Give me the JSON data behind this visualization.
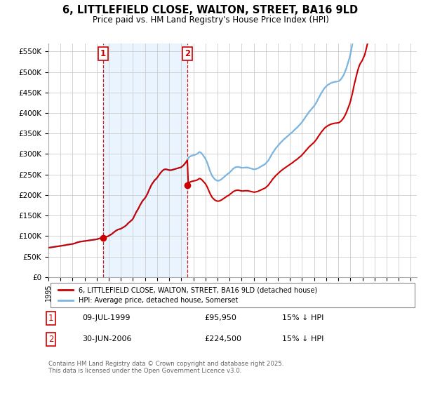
{
  "title": "6, LITTLEFIELD CLOSE, WALTON, STREET, BA16 9LD",
  "subtitle": "Price paid vs. HM Land Registry's House Price Index (HPI)",
  "ylim": [
    0,
    570000
  ],
  "yticks": [
    0,
    50000,
    100000,
    150000,
    200000,
    250000,
    300000,
    350000,
    400000,
    450000,
    500000,
    550000
  ],
  "ytick_labels": [
    "£0",
    "£50K",
    "£100K",
    "£150K",
    "£200K",
    "£250K",
    "£300K",
    "£350K",
    "£400K",
    "£450K",
    "£500K",
    "£550K"
  ],
  "hpi_color": "#7EB6E0",
  "price_color": "#cc0000",
  "vline_color": "#cc0000",
  "fill_color": "#ddeeff",
  "grid_color": "#cccccc",
  "legend_label_price": "6, LITTLEFIELD CLOSE, WALTON, STREET, BA16 9LD (detached house)",
  "legend_label_hpi": "HPI: Average price, detached house, Somerset",
  "sale1_date": "09-JUL-1999",
  "sale1_price": "£95,950",
  "sale1_note": "15% ↓ HPI",
  "sale2_date": "30-JUN-2006",
  "sale2_price": "£224,500",
  "sale2_note": "15% ↓ HPI",
  "footer": "Contains HM Land Registry data © Crown copyright and database right 2025.\nThis data is licensed under the Open Government Licence v3.0.",
  "background_color": "#ffffff",
  "sale1_year": 1999.53,
  "sale1_value": 95950,
  "sale2_year": 2006.5,
  "sale2_value": 224500,
  "hpi_years": [
    1995.0,
    1995.08,
    1995.17,
    1995.25,
    1995.33,
    1995.42,
    1995.5,
    1995.58,
    1995.67,
    1995.75,
    1995.83,
    1995.92,
    1996.0,
    1996.08,
    1996.17,
    1996.25,
    1996.33,
    1996.42,
    1996.5,
    1996.58,
    1996.67,
    1996.75,
    1996.83,
    1996.92,
    1997.0,
    1997.08,
    1997.17,
    1997.25,
    1997.33,
    1997.42,
    1997.5,
    1997.58,
    1997.67,
    1997.75,
    1997.83,
    1997.92,
    1998.0,
    1998.08,
    1998.17,
    1998.25,
    1998.33,
    1998.42,
    1998.5,
    1998.58,
    1998.67,
    1998.75,
    1998.83,
    1998.92,
    1999.0,
    1999.08,
    1999.17,
    1999.25,
    1999.33,
    1999.42,
    1999.5,
    1999.58,
    1999.67,
    1999.75,
    1999.83,
    1999.92,
    2000.0,
    2000.08,
    2000.17,
    2000.25,
    2000.33,
    2000.42,
    2000.5,
    2000.58,
    2000.67,
    2000.75,
    2000.83,
    2000.92,
    2001.0,
    2001.08,
    2001.17,
    2001.25,
    2001.33,
    2001.42,
    2001.5,
    2001.58,
    2001.67,
    2001.75,
    2001.83,
    2001.92,
    2002.0,
    2002.08,
    2002.17,
    2002.25,
    2002.33,
    2002.42,
    2002.5,
    2002.58,
    2002.67,
    2002.75,
    2002.83,
    2002.92,
    2003.0,
    2003.08,
    2003.17,
    2003.25,
    2003.33,
    2003.42,
    2003.5,
    2003.58,
    2003.67,
    2003.75,
    2003.83,
    2003.92,
    2004.0,
    2004.08,
    2004.17,
    2004.25,
    2004.33,
    2004.42,
    2004.5,
    2004.58,
    2004.67,
    2004.75,
    2004.83,
    2004.92,
    2005.0,
    2005.08,
    2005.17,
    2005.25,
    2005.33,
    2005.42,
    2005.5,
    2005.58,
    2005.67,
    2005.75,
    2005.83,
    2005.92,
    2006.0,
    2006.08,
    2006.17,
    2006.25,
    2006.33,
    2006.42,
    2006.5,
    2006.58,
    2006.67,
    2006.75,
    2006.83,
    2006.92,
    2007.0,
    2007.08,
    2007.17,
    2007.25,
    2007.33,
    2007.42,
    2007.5,
    2007.58,
    2007.67,
    2007.75,
    2007.83,
    2007.92,
    2008.0,
    2008.08,
    2008.17,
    2008.25,
    2008.33,
    2008.42,
    2008.5,
    2008.58,
    2008.67,
    2008.75,
    2008.83,
    2008.92,
    2009.0,
    2009.08,
    2009.17,
    2009.25,
    2009.33,
    2009.42,
    2009.5,
    2009.58,
    2009.67,
    2009.75,
    2009.83,
    2009.92,
    2010.0,
    2010.08,
    2010.17,
    2010.25,
    2010.33,
    2010.42,
    2010.5,
    2010.58,
    2010.67,
    2010.75,
    2010.83,
    2010.92,
    2011.0,
    2011.08,
    2011.17,
    2011.25,
    2011.33,
    2011.42,
    2011.5,
    2011.58,
    2011.67,
    2011.75,
    2011.83,
    2011.92,
    2012.0,
    2012.08,
    2012.17,
    2012.25,
    2012.33,
    2012.42,
    2012.5,
    2012.58,
    2012.67,
    2012.75,
    2012.83,
    2012.92,
    2013.0,
    2013.08,
    2013.17,
    2013.25,
    2013.33,
    2013.42,
    2013.5,
    2013.58,
    2013.67,
    2013.75,
    2013.83,
    2013.92,
    2014.0,
    2014.08,
    2014.17,
    2014.25,
    2014.33,
    2014.42,
    2014.5,
    2014.58,
    2014.67,
    2014.75,
    2014.83,
    2014.92,
    2015.0,
    2015.08,
    2015.17,
    2015.25,
    2015.33,
    2015.42,
    2015.5,
    2015.58,
    2015.67,
    2015.75,
    2015.83,
    2015.92,
    2016.0,
    2016.08,
    2016.17,
    2016.25,
    2016.33,
    2016.42,
    2016.5,
    2016.58,
    2016.67,
    2016.75,
    2016.83,
    2016.92,
    2017.0,
    2017.08,
    2017.17,
    2017.25,
    2017.33,
    2017.42,
    2017.5,
    2017.58,
    2017.67,
    2017.75,
    2017.83,
    2017.92,
    2018.0,
    2018.08,
    2018.17,
    2018.25,
    2018.33,
    2018.42,
    2018.5,
    2018.58,
    2018.67,
    2018.75,
    2018.83,
    2018.92,
    2019.0,
    2019.08,
    2019.17,
    2019.25,
    2019.33,
    2019.42,
    2019.5,
    2019.58,
    2019.67,
    2019.75,
    2019.83,
    2019.92,
    2020.0,
    2020.08,
    2020.17,
    2020.25,
    2020.33,
    2020.42,
    2020.5,
    2020.58,
    2020.67,
    2020.75,
    2020.83,
    2020.92,
    2021.0,
    2021.08,
    2021.17,
    2021.25,
    2021.33,
    2021.42,
    2021.5,
    2021.58,
    2021.67,
    2021.75,
    2021.83,
    2021.92,
    2022.0,
    2022.08,
    2022.17,
    2022.25,
    2022.33,
    2022.42,
    2022.5,
    2022.58,
    2022.67,
    2022.75,
    2022.83,
    2022.92,
    2023.0,
    2023.08,
    2023.17,
    2023.25,
    2023.33,
    2023.42,
    2023.5,
    2023.58,
    2023.67,
    2023.75,
    2023.83,
    2023.92,
    2024.0,
    2024.08,
    2024.17,
    2024.25,
    2024.33,
    2024.42,
    2024.5,
    2024.58,
    2024.67,
    2024.75,
    2024.83,
    2024.92,
    2025.0
  ],
  "hpi_index": [
    100,
    100.5,
    101,
    101.5,
    102,
    102.5,
    103,
    103.5,
    104,
    104.5,
    105,
    105.5,
    106,
    106.5,
    107.5,
    108,
    108.5,
    109,
    110,
    110.5,
    111,
    111.5,
    112,
    112.5,
    113,
    114,
    115,
    116,
    117.5,
    118.5,
    119.5,
    120.5,
    121,
    121.5,
    122,
    122.5,
    123,
    123.5,
    124,
    124.5,
    125,
    125.5,
    126,
    126.5,
    127,
    127.5,
    128,
    128.5,
    129,
    130,
    131,
    132,
    133,
    133.5,
    134,
    135,
    136,
    137,
    138,
    139,
    141,
    143,
    145,
    147,
    150,
    153,
    156,
    158,
    160,
    162,
    163,
    164,
    165,
    167,
    169,
    171,
    173,
    176,
    179,
    183,
    186,
    189,
    192,
    195,
    199,
    206,
    213,
    220,
    226,
    232,
    238,
    245,
    251,
    257,
    262,
    266,
    270,
    275,
    282,
    289,
    297,
    305,
    312,
    318,
    323,
    328,
    332,
    335,
    339,
    344,
    349,
    354,
    358,
    362,
    365,
    367,
    368,
    368,
    367,
    366,
    365,
    365,
    365,
    366,
    367,
    368,
    369,
    370,
    371,
    372,
    373,
    374,
    375,
    378,
    381,
    385,
    389,
    394,
    399,
    406,
    410,
    412,
    414,
    415,
    416,
    417,
    418,
    419,
    421,
    424,
    427,
    426,
    423,
    419,
    414,
    409,
    404,
    397,
    388,
    378,
    368,
    358,
    350,
    344,
    339,
    335,
    332,
    330,
    329,
    329,
    330,
    332,
    334,
    337,
    340,
    343,
    346,
    349,
    352,
    354,
    357,
    361,
    364,
    368,
    371,
    373,
    375,
    376,
    376,
    376,
    375,
    374,
    373,
    373,
    373,
    374,
    374,
    374,
    374,
    373,
    372,
    371,
    370,
    369,
    368,
    368,
    369,
    370,
    371,
    373,
    375,
    377,
    379,
    381,
    383,
    385,
    388,
    392,
    396,
    401,
    407,
    413,
    419,
    425,
    430,
    435,
    440,
    444,
    448,
    452,
    456,
    460,
    463,
    467,
    470,
    473,
    476,
    479,
    482,
    485,
    488,
    491,
    494,
    497,
    501,
    504,
    507,
    510,
    514,
    518,
    521,
    525,
    529,
    534,
    539,
    544,
    549,
    554,
    559,
    564,
    568,
    572,
    576,
    580,
    584,
    589,
    595,
    601,
    608,
    615,
    621,
    627,
    633,
    638,
    643,
    648,
    651,
    654,
    657,
    659,
    661,
    663,
    664,
    665,
    666,
    667,
    667,
    668,
    668,
    670,
    673,
    677,
    682,
    688,
    695,
    703,
    713,
    724,
    735,
    747,
    760,
    777,
    796,
    816,
    836,
    855,
    873,
    889,
    905,
    917,
    926,
    933,
    940,
    950,
    960,
    975,
    992,
    1010,
    1029,
    1048,
    1065,
    1078,
    1087,
    1094,
    1099,
    1103,
    1107,
    1110,
    1113,
    1116,
    1118,
    1120,
    1120,
    1118,
    1114,
    1109,
    1103,
    1097,
    1091,
    1086,
    1081,
    1077,
    1074,
    1072,
    1071,
    1071,
    1072,
    1074,
    1076,
    1078,
    1080,
    1082,
    1084,
    1085,
    1086,
    1086,
    1085,
    1083,
    1081,
    1079,
    1077
  ],
  "xlim_start": 1995,
  "xlim_end": 2025.5,
  "xticks": [
    1995,
    1996,
    1997,
    1998,
    1999,
    2000,
    2001,
    2002,
    2003,
    2004,
    2005,
    2006,
    2007,
    2008,
    2009,
    2010,
    2011,
    2012,
    2013,
    2014,
    2015,
    2016,
    2017,
    2018,
    2019,
    2020,
    2021,
    2022,
    2023,
    2024,
    2025
  ]
}
